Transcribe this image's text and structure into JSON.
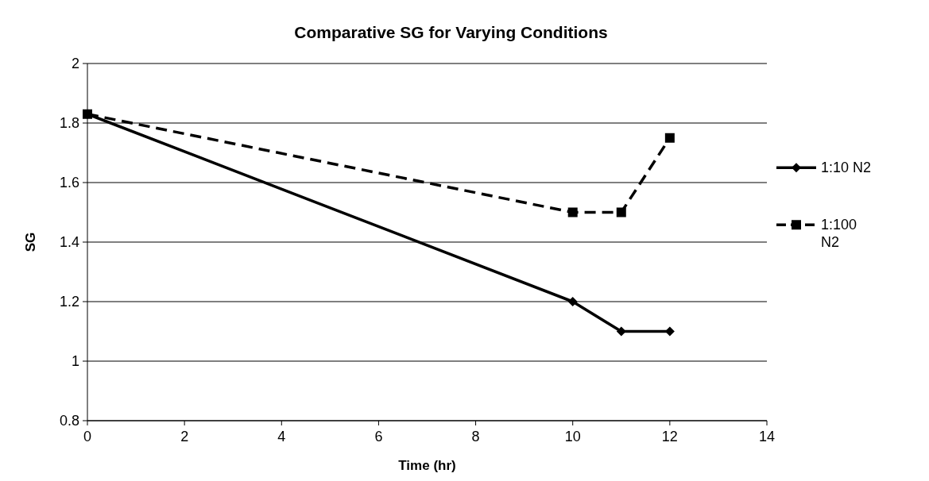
{
  "chart_data": {
    "type": "line",
    "title": "Comparative SG for Varying Conditions",
    "xlabel": "Time (hr)",
    "ylabel": "SG",
    "xlim": [
      0,
      14
    ],
    "xticks": [
      0,
      2,
      4,
      6,
      8,
      10,
      12,
      14
    ],
    "ylim": [
      0.8,
      2
    ],
    "yticks": [
      0.8,
      1,
      1.2,
      1.4,
      1.6,
      1.8,
      2
    ],
    "grid": "y",
    "legend": "right",
    "series": [
      {
        "name": "1:10 N2",
        "color": "#000000",
        "x": [
          0,
          10,
          11,
          12
        ],
        "values": [
          1.83,
          1.2,
          1.1,
          1.1
        ],
        "marker": "diamond",
        "line_style": "solid"
      },
      {
        "name": "1:100 N2",
        "color": "#000000",
        "x": [
          0,
          10,
          11,
          12
        ],
        "values": [
          1.83,
          1.5,
          1.5,
          1.75
        ],
        "marker": "square",
        "line_style": "dashed"
      }
    ]
  }
}
